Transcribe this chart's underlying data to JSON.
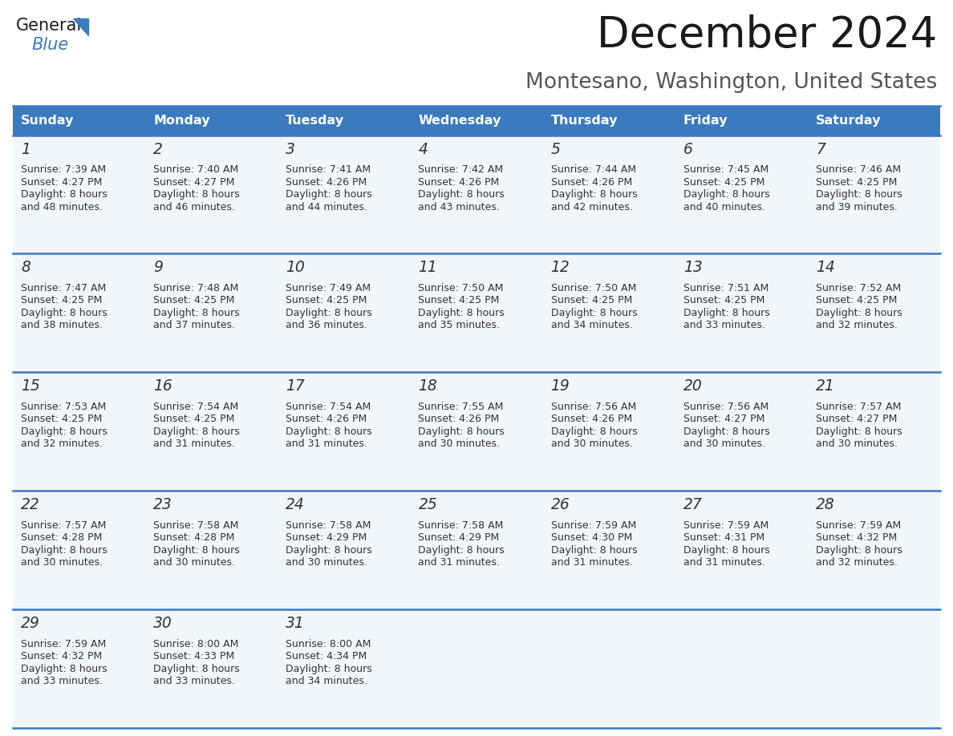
{
  "title": "December 2024",
  "subtitle": "Montesano, Washington, United States",
  "header_bg_color": "#3a7abf",
  "header_text_color": "#ffffff",
  "cell_border_color": "#3a7abf",
  "cell_bg_color": "#f2f6fb",
  "day_names": [
    "Sunday",
    "Monday",
    "Tuesday",
    "Wednesday",
    "Thursday",
    "Friday",
    "Saturday"
  ],
  "days": [
    {
      "day": 1,
      "col": 0,
      "row": 0,
      "sunrise": "7:39 AM",
      "sunset": "4:27 PM",
      "daylight_line1": "Daylight: 8 hours",
      "daylight_line2": "and 48 minutes."
    },
    {
      "day": 2,
      "col": 1,
      "row": 0,
      "sunrise": "7:40 AM",
      "sunset": "4:27 PM",
      "daylight_line1": "Daylight: 8 hours",
      "daylight_line2": "and 46 minutes."
    },
    {
      "day": 3,
      "col": 2,
      "row": 0,
      "sunrise": "7:41 AM",
      "sunset": "4:26 PM",
      "daylight_line1": "Daylight: 8 hours",
      "daylight_line2": "and 44 minutes."
    },
    {
      "day": 4,
      "col": 3,
      "row": 0,
      "sunrise": "7:42 AM",
      "sunset": "4:26 PM",
      "daylight_line1": "Daylight: 8 hours",
      "daylight_line2": "and 43 minutes."
    },
    {
      "day": 5,
      "col": 4,
      "row": 0,
      "sunrise": "7:44 AM",
      "sunset": "4:26 PM",
      "daylight_line1": "Daylight: 8 hours",
      "daylight_line2": "and 42 minutes."
    },
    {
      "day": 6,
      "col": 5,
      "row": 0,
      "sunrise": "7:45 AM",
      "sunset": "4:25 PM",
      "daylight_line1": "Daylight: 8 hours",
      "daylight_line2": "and 40 minutes."
    },
    {
      "day": 7,
      "col": 6,
      "row": 0,
      "sunrise": "7:46 AM",
      "sunset": "4:25 PM",
      "daylight_line1": "Daylight: 8 hours",
      "daylight_line2": "and 39 minutes."
    },
    {
      "day": 8,
      "col": 0,
      "row": 1,
      "sunrise": "7:47 AM",
      "sunset": "4:25 PM",
      "daylight_line1": "Daylight: 8 hours",
      "daylight_line2": "and 38 minutes."
    },
    {
      "day": 9,
      "col": 1,
      "row": 1,
      "sunrise": "7:48 AM",
      "sunset": "4:25 PM",
      "daylight_line1": "Daylight: 8 hours",
      "daylight_line2": "and 37 minutes."
    },
    {
      "day": 10,
      "col": 2,
      "row": 1,
      "sunrise": "7:49 AM",
      "sunset": "4:25 PM",
      "daylight_line1": "Daylight: 8 hours",
      "daylight_line2": "and 36 minutes."
    },
    {
      "day": 11,
      "col": 3,
      "row": 1,
      "sunrise": "7:50 AM",
      "sunset": "4:25 PM",
      "daylight_line1": "Daylight: 8 hours",
      "daylight_line2": "and 35 minutes."
    },
    {
      "day": 12,
      "col": 4,
      "row": 1,
      "sunrise": "7:50 AM",
      "sunset": "4:25 PM",
      "daylight_line1": "Daylight: 8 hours",
      "daylight_line2": "and 34 minutes."
    },
    {
      "day": 13,
      "col": 5,
      "row": 1,
      "sunrise": "7:51 AM",
      "sunset": "4:25 PM",
      "daylight_line1": "Daylight: 8 hours",
      "daylight_line2": "and 33 minutes."
    },
    {
      "day": 14,
      "col": 6,
      "row": 1,
      "sunrise": "7:52 AM",
      "sunset": "4:25 PM",
      "daylight_line1": "Daylight: 8 hours",
      "daylight_line2": "and 32 minutes."
    },
    {
      "day": 15,
      "col": 0,
      "row": 2,
      "sunrise": "7:53 AM",
      "sunset": "4:25 PM",
      "daylight_line1": "Daylight: 8 hours",
      "daylight_line2": "and 32 minutes."
    },
    {
      "day": 16,
      "col": 1,
      "row": 2,
      "sunrise": "7:54 AM",
      "sunset": "4:25 PM",
      "daylight_line1": "Daylight: 8 hours",
      "daylight_line2": "and 31 minutes."
    },
    {
      "day": 17,
      "col": 2,
      "row": 2,
      "sunrise": "7:54 AM",
      "sunset": "4:26 PM",
      "daylight_line1": "Daylight: 8 hours",
      "daylight_line2": "and 31 minutes."
    },
    {
      "day": 18,
      "col": 3,
      "row": 2,
      "sunrise": "7:55 AM",
      "sunset": "4:26 PM",
      "daylight_line1": "Daylight: 8 hours",
      "daylight_line2": "and 30 minutes."
    },
    {
      "day": 19,
      "col": 4,
      "row": 2,
      "sunrise": "7:56 AM",
      "sunset": "4:26 PM",
      "daylight_line1": "Daylight: 8 hours",
      "daylight_line2": "and 30 minutes."
    },
    {
      "day": 20,
      "col": 5,
      "row": 2,
      "sunrise": "7:56 AM",
      "sunset": "4:27 PM",
      "daylight_line1": "Daylight: 8 hours",
      "daylight_line2": "and 30 minutes."
    },
    {
      "day": 21,
      "col": 6,
      "row": 2,
      "sunrise": "7:57 AM",
      "sunset": "4:27 PM",
      "daylight_line1": "Daylight: 8 hours",
      "daylight_line2": "and 30 minutes."
    },
    {
      "day": 22,
      "col": 0,
      "row": 3,
      "sunrise": "7:57 AM",
      "sunset": "4:28 PM",
      "daylight_line1": "Daylight: 8 hours",
      "daylight_line2": "and 30 minutes."
    },
    {
      "day": 23,
      "col": 1,
      "row": 3,
      "sunrise": "7:58 AM",
      "sunset": "4:28 PM",
      "daylight_line1": "Daylight: 8 hours",
      "daylight_line2": "and 30 minutes."
    },
    {
      "day": 24,
      "col": 2,
      "row": 3,
      "sunrise": "7:58 AM",
      "sunset": "4:29 PM",
      "daylight_line1": "Daylight: 8 hours",
      "daylight_line2": "and 30 minutes."
    },
    {
      "day": 25,
      "col": 3,
      "row": 3,
      "sunrise": "7:58 AM",
      "sunset": "4:29 PM",
      "daylight_line1": "Daylight: 8 hours",
      "daylight_line2": "and 31 minutes."
    },
    {
      "day": 26,
      "col": 4,
      "row": 3,
      "sunrise": "7:59 AM",
      "sunset": "4:30 PM",
      "daylight_line1": "Daylight: 8 hours",
      "daylight_line2": "and 31 minutes."
    },
    {
      "day": 27,
      "col": 5,
      "row": 3,
      "sunrise": "7:59 AM",
      "sunset": "4:31 PM",
      "daylight_line1": "Daylight: 8 hours",
      "daylight_line2": "and 31 minutes."
    },
    {
      "day": 28,
      "col": 6,
      "row": 3,
      "sunrise": "7:59 AM",
      "sunset": "4:32 PM",
      "daylight_line1": "Daylight: 8 hours",
      "daylight_line2": "and 32 minutes."
    },
    {
      "day": 29,
      "col": 0,
      "row": 4,
      "sunrise": "7:59 AM",
      "sunset": "4:32 PM",
      "daylight_line1": "Daylight: 8 hours",
      "daylight_line2": "and 33 minutes."
    },
    {
      "day": 30,
      "col": 1,
      "row": 4,
      "sunrise": "8:00 AM",
      "sunset": "4:33 PM",
      "daylight_line1": "Daylight: 8 hours",
      "daylight_line2": "and 33 minutes."
    },
    {
      "day": 31,
      "col": 2,
      "row": 4,
      "sunrise": "8:00 AM",
      "sunset": "4:34 PM",
      "daylight_line1": "Daylight: 8 hours",
      "daylight_line2": "and 34 minutes."
    }
  ]
}
